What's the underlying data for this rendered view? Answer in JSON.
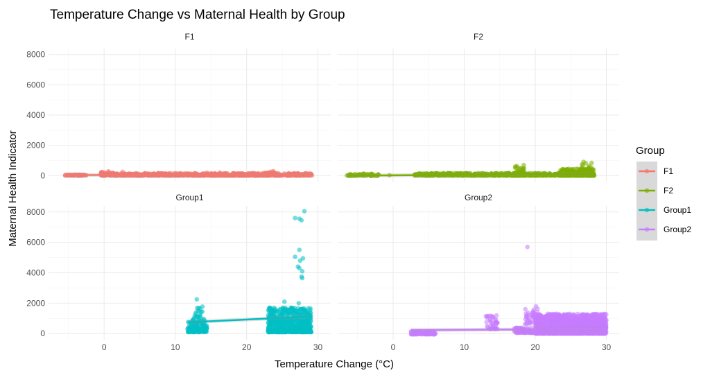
{
  "chart_data": {
    "type": "scatter",
    "title": "Temperature Change vs Maternal Health by Group",
    "xlabel": "Temperature Change (°C)",
    "ylabel": "Maternal Health Indicator",
    "xlim": [
      -7.8,
      31.8
    ],
    "ylim": [
      -400,
      8400
    ],
    "x_ticks": [
      0,
      10,
      20,
      30
    ],
    "x_tick_labels": [
      "0",
      "10",
      "20",
      "30"
    ],
    "y_ticks": [
      0,
      2000,
      4000,
      6000,
      8000
    ],
    "y_tick_labels": [
      "0",
      "2000",
      "4000",
      "6000",
      "8000"
    ],
    "grid": true,
    "facets": [
      "F1",
      "F2",
      "Group1",
      "Group2"
    ],
    "legend": {
      "title": "Group",
      "position": "right",
      "entries": [
        {
          "label": "F1",
          "color": "#F8766D"
        },
        {
          "label": "F2",
          "color": "#7CAE00"
        },
        {
          "label": "Group1",
          "color": "#00BFC4"
        },
        {
          "label": "Group2",
          "color": "#C77CFF"
        }
      ]
    },
    "series": [
      {
        "name": "F1",
        "color": "#F8766D",
        "x_range": [
          -5.5,
          29.2
        ],
        "clusters": [
          {
            "x": [
              -5.5,
              -2.5
            ],
            "y": [
              0,
              60
            ],
            "n": 60
          },
          {
            "x": [
              -0.5,
              29.2
            ],
            "y": [
              0,
              160
            ],
            "n": 900
          },
          {
            "x": [
              -0.5,
              1.5
            ],
            "y": [
              80,
              260
            ],
            "n": 20
          },
          {
            "x": [
              22.5,
              24.0
            ],
            "y": [
              100,
              300
            ],
            "n": 25
          }
        ],
        "outliers": [
          [
            -0.4,
            230
          ],
          [
            0.6,
            280
          ],
          [
            2.6,
            250
          ],
          [
            14.5,
            180
          ],
          [
            16.2,
            200
          ]
        ],
        "fit": [
          [
            -5.5,
            30
          ],
          [
            29.2,
            70
          ]
        ]
      },
      {
        "name": "F2",
        "color": "#7CAE00",
        "x_range": [
          -6.5,
          28.3
        ],
        "clusters": [
          {
            "x": [
              -6.5,
              -2.0
            ],
            "y": [
              -20,
              120
            ],
            "n": 60
          },
          {
            "x": [
              3.0,
              28.3
            ],
            "y": [
              0,
              160
            ],
            "n": 700
          },
          {
            "x": [
              17.0,
              18.5
            ],
            "y": [
              100,
              700
            ],
            "n": 40
          },
          {
            "x": [
              23.5,
              28.2
            ],
            "y": [
              0,
              450
            ],
            "n": 300
          },
          {
            "x": [
              26.5,
              28.0
            ],
            "y": [
              200,
              850
            ],
            "n": 35
          }
        ],
        "outliers": [
          [
            -0.5,
            20
          ],
          [
            26.8,
            900
          ],
          [
            12.0,
            160
          ]
        ],
        "fit": [
          [
            -6.5,
            -10
          ],
          [
            28.3,
            120
          ]
        ]
      },
      {
        "name": "Group1",
        "color": "#00BFC4",
        "x_range": [
          11.7,
          29.1
        ],
        "clusters": [
          {
            "x": [
              11.7,
              14.5
            ],
            "y": [
              100,
              900
            ],
            "n": 120
          },
          {
            "x": [
              12.5,
              14.0
            ],
            "y": [
              700,
              1800
            ],
            "n": 30
          },
          {
            "x": [
              23.0,
              29.1
            ],
            "y": [
              100,
              1700
            ],
            "n": 700
          }
        ],
        "outliers": [
          [
            13.0,
            2250
          ],
          [
            28.1,
            8050
          ],
          [
            26.8,
            7600
          ],
          [
            27.4,
            7550
          ],
          [
            27.7,
            7450
          ],
          [
            27.4,
            5500
          ],
          [
            26.8,
            5050
          ],
          [
            27.9,
            4950
          ],
          [
            27.5,
            4800
          ],
          [
            27.2,
            4400
          ],
          [
            27.4,
            4300
          ],
          [
            27.8,
            4100
          ],
          [
            27.7,
            3750
          ],
          [
            27.8,
            3650
          ],
          [
            25.3,
            2100
          ],
          [
            27.3,
            2000
          ]
        ],
        "fit": [
          [
            11.7,
            740
          ],
          [
            29.1,
            1120
          ]
        ]
      },
      {
        "name": "Group2",
        "color": "#C77CFF",
        "x_range": [
          2.5,
          30.0
        ],
        "clusters": [
          {
            "x": [
              2.5,
              6.0
            ],
            "y": [
              -50,
              150
            ],
            "n": 80
          },
          {
            "x": [
              13.0,
              14.8
            ],
            "y": [
              300,
              1200
            ],
            "n": 40
          },
          {
            "x": [
              17.0,
              20.0
            ],
            "y": [
              50,
              400
            ],
            "n": 80
          },
          {
            "x": [
              18.5,
              20.5
            ],
            "y": [
              600,
              1700
            ],
            "n": 40
          },
          {
            "x": [
              20.0,
              30.0
            ],
            "y": [
              0,
              1300
            ],
            "n": 1500
          }
        ],
        "outliers": [
          [
            18.9,
            5700
          ],
          [
            20.1,
            1800
          ],
          [
            18.6,
            1600
          ]
        ],
        "fit": [
          [
            2.5,
            230
          ],
          [
            30.0,
            300
          ]
        ]
      }
    ]
  }
}
